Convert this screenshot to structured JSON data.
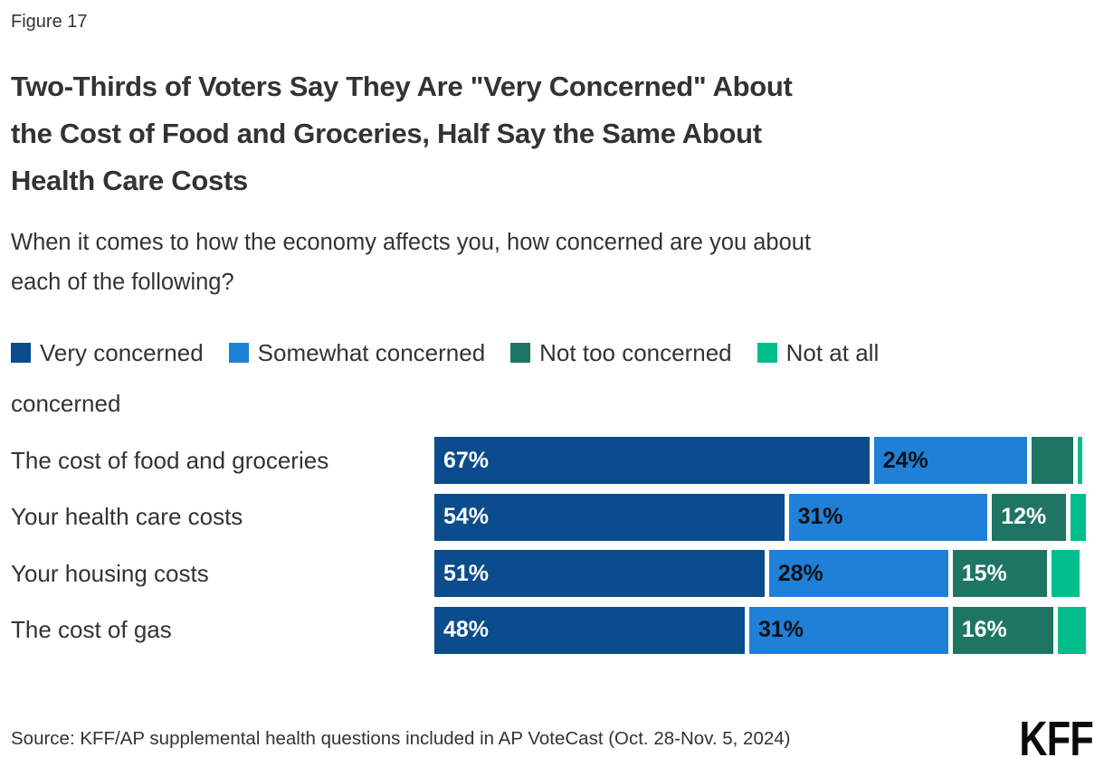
{
  "figure_label": "Figure 17",
  "title": "Two-Thirds of Voters Say They Are \"Very Concerned\" About the Cost of Food and Groceries, Half Say the Same About Health Care Costs",
  "title_lines": [
    "Two-Thirds of Voters Say They Are \"Very Concerned\" About",
    "the Cost of Food and Groceries, Half Say the Same About",
    "Health Care Costs"
  ],
  "subtitle": "When it comes to how the economy affects you, how concerned are you about each of the following?",
  "subtitle_lines": [
    "When it comes to how the economy affects you, how concerned are you about",
    "each of the following?"
  ],
  "legend": [
    {
      "label": "Very concerned",
      "color": "#0A4C8C"
    },
    {
      "label": "Somewhat concerned",
      "color": "#1F80D8"
    },
    {
      "label": "Not too concerned",
      "color": "#1E7564"
    },
    {
      "label": "Not at all concerned",
      "color": "#00BE8C"
    }
  ],
  "chart_data": {
    "type": "bar",
    "stacked": true,
    "orientation": "horizontal",
    "title": "Two-Thirds of Voters Say They Are \"Very Concerned\" About the Cost of Food and Groceries, Half Say the Same About Health Care Costs",
    "xlabel": "",
    "ylabel": "",
    "xlim": [
      0,
      100
    ],
    "grid": false,
    "legend_position": "top",
    "categories": [
      "The cost of food and groceries",
      "Your health care costs",
      "Your housing costs",
      "The cost of gas"
    ],
    "series": [
      {
        "name": "Very concerned",
        "color": "#0A4C8C",
        "label_color": "#ffffff",
        "values": [
          67,
          54,
          51,
          48
        ]
      },
      {
        "name": "Somewhat concerned",
        "color": "#1F80D8",
        "label_color": "#111111",
        "values": [
          24,
          31,
          28,
          31
        ]
      },
      {
        "name": "Not too concerned",
        "color": "#1E7564",
        "label_color": "#ffffff",
        "values": [
          7,
          12,
          15,
          16
        ]
      },
      {
        "name": "Not at all concerned",
        "color": "#00BE8C",
        "label_color": "#ffffff",
        "values": [
          1,
          3,
          5,
          5
        ]
      }
    ],
    "value_labels": [
      [
        "67%",
        "24%",
        "",
        ""
      ],
      [
        "54%",
        "31%",
        "12%",
        ""
      ],
      [
        "51%",
        "28%",
        "15%",
        ""
      ],
      [
        "48%",
        "31%",
        "16%",
        ""
      ]
    ]
  },
  "source": "Source: KFF/AP supplemental health questions included in AP VoteCast (Oct. 28-Nov. 5, 2024)",
  "logo_text": "KFF"
}
